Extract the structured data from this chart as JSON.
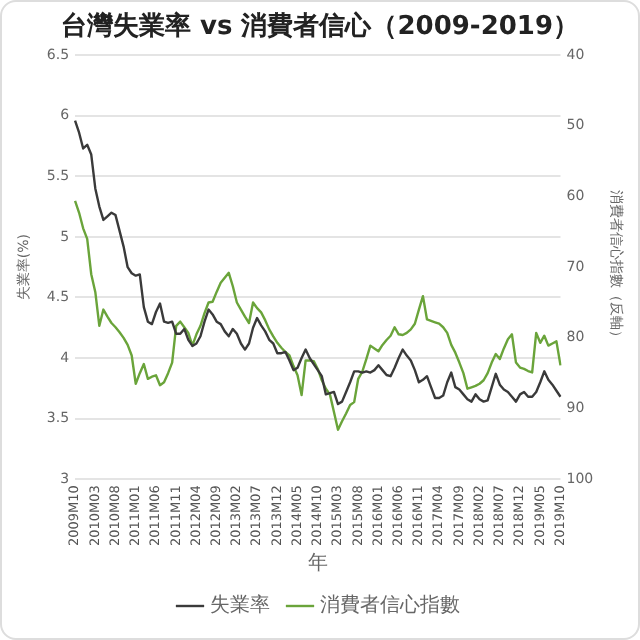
{
  "chart_data": {
    "type": "line",
    "title": "台灣失業率 vs 消費者信心（2009-2019）",
    "xlabel": "年",
    "ylabel": "失業率(%)",
    "y2label": "消費者信心指數（反軸）",
    "categories": [
      "2009M10",
      null,
      null,
      null,
      null,
      "2010M03",
      null,
      null,
      null,
      null,
      "2010M08",
      null,
      null,
      null,
      null,
      "2011M01",
      null,
      null,
      null,
      null,
      "2011M06",
      null,
      null,
      null,
      null,
      "2011M11",
      null,
      null,
      null,
      null,
      "2012M04",
      null,
      null,
      null,
      null,
      "2012M09",
      null,
      null,
      null,
      null,
      "2013M02",
      null,
      null,
      null,
      null,
      "2013M07",
      null,
      null,
      null,
      null,
      "2013M12",
      null,
      null,
      null,
      null,
      "2014M05",
      null,
      null,
      null,
      null,
      "2014M10",
      null,
      null,
      null,
      null,
      "2015M03",
      null,
      null,
      null,
      null,
      "2015M08",
      null,
      null,
      null,
      null,
      "2016M01",
      null,
      null,
      null,
      null,
      "2016M06",
      null,
      null,
      null,
      null,
      "2016M11",
      null,
      null,
      null,
      null,
      "2017M04",
      null,
      null,
      null,
      null,
      "2017M09",
      null,
      null,
      null,
      null,
      "2018M02",
      null,
      null,
      null,
      null,
      "2018M07",
      null,
      null,
      null,
      null,
      "2018M12",
      null,
      null,
      null,
      null,
      "2019M05",
      null,
      null,
      null,
      null,
      "2019M10"
    ],
    "series": [
      {
        "name": "失業率",
        "color": "#3a3a3a",
        "values": [
          5.96,
          5.86,
          5.73,
          5.76,
          5.68,
          5.4,
          5.25,
          5.14,
          5.17,
          5.2,
          5.18,
          5.05,
          4.92,
          4.75,
          4.7,
          4.68,
          4.69,
          4.42,
          4.3,
          4.28,
          4.38,
          4.45,
          4.3,
          4.29,
          4.3,
          4.2,
          4.2,
          4.24,
          4.15,
          4.1,
          4.12,
          4.18,
          4.3,
          4.4,
          4.36,
          4.3,
          4.28,
          4.22,
          4.18,
          4.24,
          4.2,
          4.12,
          4.07,
          4.12,
          4.25,
          4.33,
          4.27,
          4.22,
          4.15,
          4.12,
          4.04,
          4.04,
          4.05,
          3.98,
          3.9,
          3.92,
          4.0,
          4.07,
          4.0,
          3.95,
          3.9,
          3.85,
          3.7,
          3.71,
          3.72,
          3.62,
          3.64,
          3.72,
          3.8,
          3.89,
          3.89,
          3.88,
          3.89,
          3.88,
          3.9,
          3.94,
          3.9,
          3.86,
          3.85,
          3.92,
          4.0,
          4.07,
          4.02,
          3.98,
          3.9,
          3.8,
          3.82,
          3.85,
          3.76,
          3.67,
          3.67,
          3.69,
          3.8,
          3.88,
          3.76,
          3.74,
          3.7,
          3.66,
          3.64,
          3.7,
          3.66,
          3.64,
          3.65,
          3.76,
          3.87,
          3.78,
          3.74,
          3.72,
          3.68,
          3.64,
          3.7,
          3.72,
          3.68,
          3.68,
          3.72,
          3.8,
          3.89,
          3.82,
          3.78,
          3.73,
          3.68
        ]
      },
      {
        "name": "消費者信心指數",
        "color": "#6aa43a",
        "axis": "y2",
        "values": [
          60.6,
          62.3,
          64.5,
          66,
          71,
          73.5,
          78.3,
          76,
          77,
          77.9,
          78.5,
          79.2,
          80,
          81,
          82.5,
          86.5,
          85,
          83.7,
          85.8,
          85.5,
          85.3,
          86.7,
          86.3,
          85,
          83.5,
          78.3,
          77.7,
          78.5,
          79.3,
          81.1,
          79.5,
          78.3,
          76.5,
          75,
          74.9,
          73.5,
          72.2,
          71.5,
          70.8,
          72.7,
          75,
          76,
          77,
          77.9,
          75,
          75.8,
          76.4,
          77.5,
          78.8,
          79.8,
          80.7,
          81.4,
          82,
          82.5,
          84,
          85.3,
          88.1,
          83.2,
          83.2,
          83.3,
          84.4,
          86,
          87.2,
          88,
          90.5,
          93,
          91.8,
          90.7,
          89.5,
          89.1,
          85.8,
          84.8,
          83,
          81.1,
          81.5,
          81.9,
          81,
          80.3,
          79.7,
          78.5,
          79.5,
          79.6,
          79.3,
          78.8,
          78,
          76,
          74.1,
          77.4,
          77.6,
          77.8,
          78,
          78.5,
          79.3,
          81,
          82.1,
          83.5,
          85,
          87.2,
          87,
          86.8,
          86.5,
          86,
          85,
          83.5,
          82.3,
          83,
          81.5,
          80.2,
          79.5,
          83.5,
          84.2,
          84.4,
          84.7,
          84.9,
          79.3,
          80.7,
          79.7,
          81.1,
          80.8,
          80.5,
          83.9
        ]
      }
    ],
    "ylim": [
      3,
      6.5
    ],
    "yticks": [
      3,
      3.5,
      4,
      4.5,
      5,
      5.5,
      6,
      6.5
    ],
    "y2lim": [
      100,
      40
    ],
    "y2ticks": [
      40,
      50,
      60,
      70,
      80,
      90,
      100
    ],
    "grid": "y",
    "legend": "bottom",
    "marker": "none",
    "line_style": "solid"
  }
}
